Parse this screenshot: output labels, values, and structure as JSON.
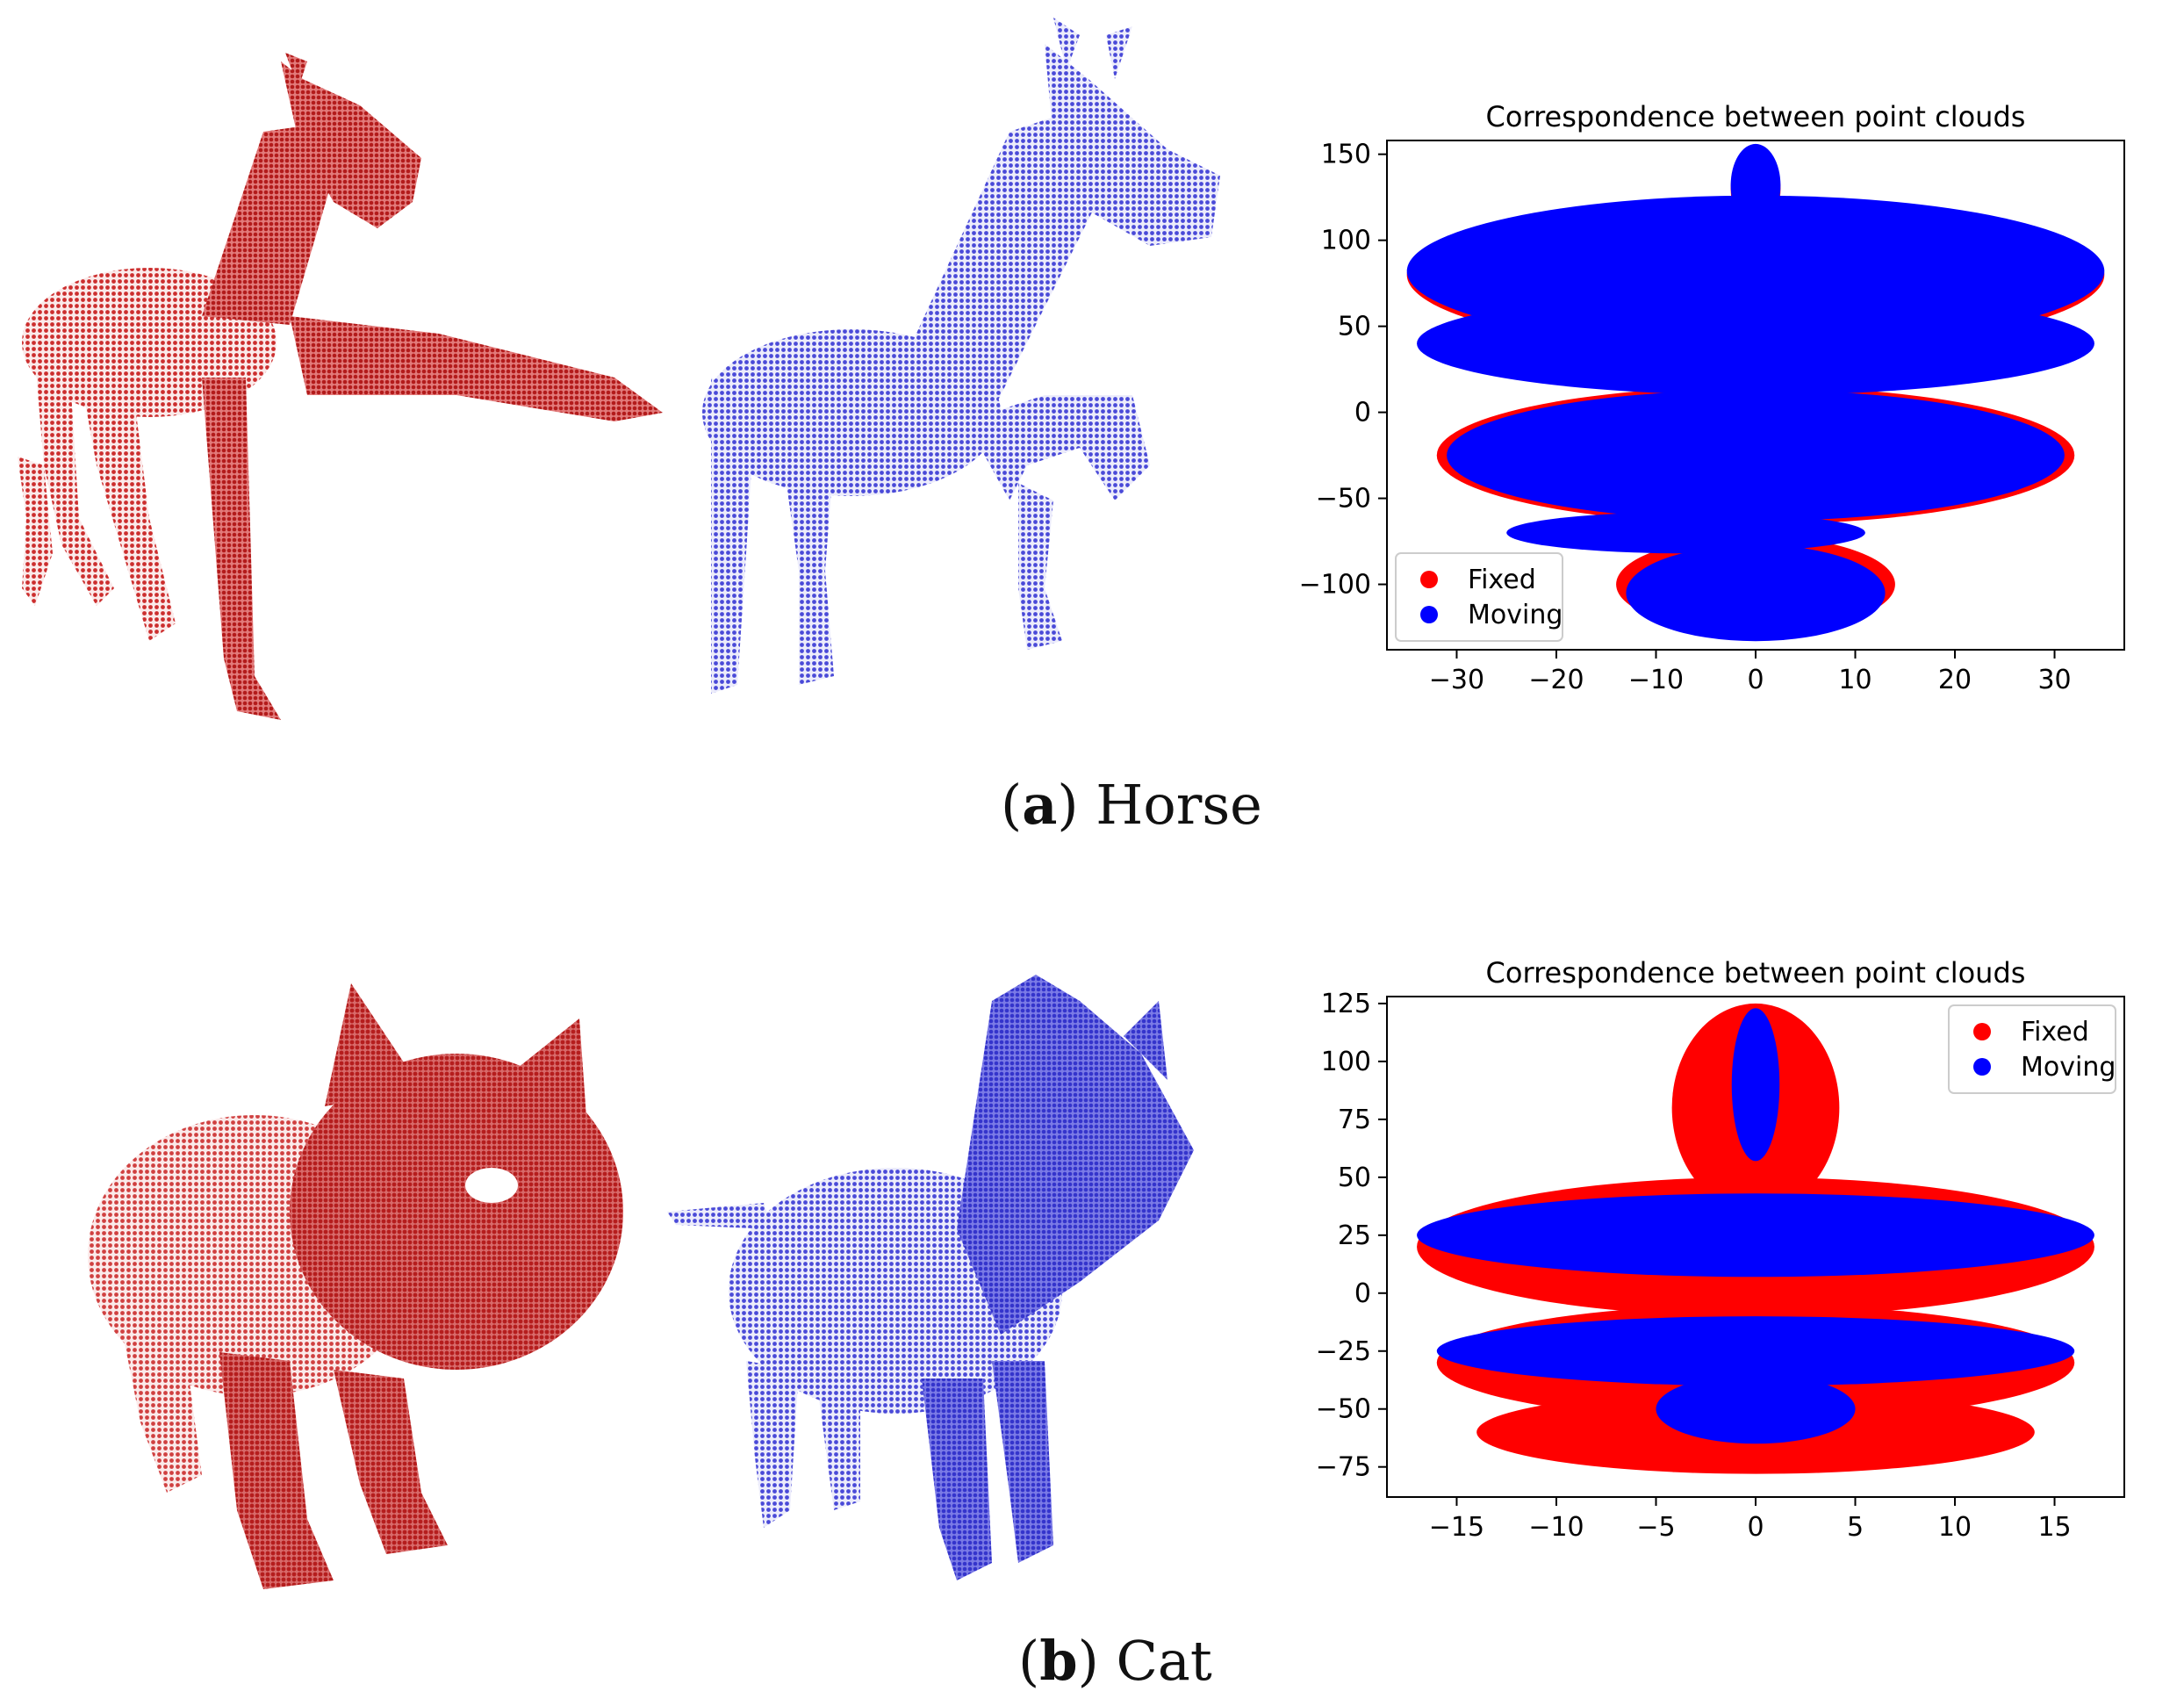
{
  "colors": {
    "fixed": "#ff0000",
    "moving": "#0000ff",
    "fixed_cloud": "#d94040",
    "moving_cloud": "#5a5ae0"
  },
  "panels": [
    {
      "id": "horse",
      "caption_letter": "a",
      "caption_text": "Horse",
      "fixed_cloud_shape": "horse",
      "moving_cloud_shape": "horse"
    },
    {
      "id": "cat",
      "caption_letter": "b",
      "caption_text": "Cat",
      "fixed_cloud_shape": "cat",
      "moving_cloud_shape": "cat"
    }
  ],
  "chart_data": [
    {
      "type": "scatter",
      "title": "Correspondence between point clouds",
      "xlabel": "",
      "ylabel": "",
      "xlim": [
        -37,
        37
      ],
      "ylim": [
        -138,
        158
      ],
      "xticks": [
        -30,
        -20,
        -10,
        0,
        10,
        20,
        30
      ],
      "yticks": [
        -100,
        -50,
        0,
        50,
        100,
        150
      ],
      "legend_position": "lower-left",
      "grid": false,
      "series": [
        {
          "name": "Fixed",
          "color": "#ff0000"
        },
        {
          "name": "Moving",
          "color": "#0000ff"
        }
      ]
    },
    {
      "type": "scatter",
      "title": "Correspondence between point clouds",
      "xlabel": "",
      "ylabel": "",
      "xlim": [
        -18.5,
        18.5
      ],
      "ylim": [
        -88,
        128
      ],
      "xticks": [
        -15,
        -10,
        -5,
        0,
        5,
        10,
        15
      ],
      "yticks": [
        -75,
        -50,
        -25,
        0,
        25,
        50,
        75,
        100,
        125
      ],
      "legend_position": "upper-right",
      "grid": false,
      "series": [
        {
          "name": "Fixed",
          "color": "#ff0000"
        },
        {
          "name": "Moving",
          "color": "#0000ff"
        }
      ]
    }
  ]
}
